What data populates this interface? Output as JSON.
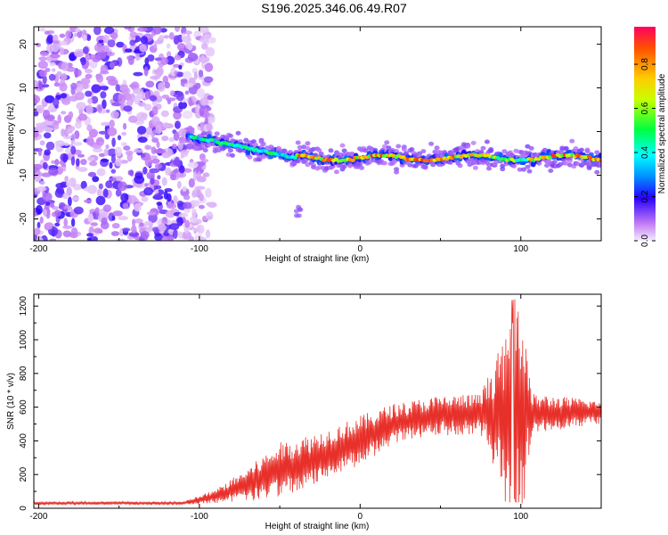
{
  "title": "S196.2025.346.06.49.R07",
  "chart_data": [
    {
      "type": "heatmap",
      "id": "spectrogram",
      "xlabel": "Height of straight line (km)",
      "ylabel": "Frequency (Hz)",
      "xlim": [
        -203,
        150
      ],
      "ylim": [
        -25,
        24
      ],
      "xticks": [
        -200,
        -100,
        0,
        100
      ],
      "yticks": [
        -20,
        -10,
        0,
        10,
        20
      ],
      "colorbar": {
        "label": "Normalized spectral amplitude",
        "range": [
          0,
          0.97
        ],
        "ticks": [
          0.0,
          0.2,
          0.4,
          0.6,
          0.8
        ],
        "tick_labels": [
          "0.0",
          "0.2",
          "0.4",
          "0.6",
          "0.8"
        ]
      },
      "features": [
        {
          "name": "noise-region",
          "x_range": [
            -203,
            -100
          ],
          "y_range": [
            -25,
            24
          ],
          "amplitude": 0.1
        },
        {
          "name": "signal-band-onset",
          "x_range": [
            -107,
            -40
          ],
          "center_freq_start": -1,
          "center_freq_end": -6,
          "amplitude": 0.3
        },
        {
          "name": "signal-band",
          "x_range": [
            -40,
            150
          ],
          "center_freq": -6,
          "amplitude": 0.9
        }
      ]
    },
    {
      "type": "line",
      "id": "snr",
      "xlabel": "Height of straight line (km)",
      "ylabel": "SNR (10 * v/v)",
      "xlim": [
        -203,
        150
      ],
      "ylim": [
        0,
        1270
      ],
      "xticks": [
        -200,
        -100,
        0,
        100
      ],
      "yticks": [
        0,
        200,
        400,
        600,
        800,
        1000,
        1200
      ],
      "color": "#e8302a",
      "series": [
        {
          "name": "SNR",
          "envelope": [
            {
              "x": -203,
              "mean": 30,
              "spread": 10
            },
            {
              "x": -110,
              "mean": 30,
              "spread": 10
            },
            {
              "x": -90,
              "mean": 70,
              "spread": 40
            },
            {
              "x": -70,
              "mean": 140,
              "spread": 100
            },
            {
              "x": -50,
              "mean": 230,
              "spread": 160
            },
            {
              "x": -35,
              "mean": 260,
              "spread": 170
            },
            {
              "x": -20,
              "mean": 330,
              "spread": 140
            },
            {
              "x": 0,
              "mean": 400,
              "spread": 150
            },
            {
              "x": 20,
              "mean": 500,
              "spread": 120
            },
            {
              "x": 50,
              "mean": 550,
              "spread": 120
            },
            {
              "x": 75,
              "mean": 560,
              "spread": 120
            },
            {
              "x": 85,
              "mean": 560,
              "spread": 350
            },
            {
              "x": 100,
              "mean": 600,
              "spread": 600
            },
            {
              "x": 107,
              "mean": 560,
              "spread": 120
            },
            {
              "x": 150,
              "mean": 570,
              "spread": 70
            }
          ]
        }
      ]
    }
  ]
}
